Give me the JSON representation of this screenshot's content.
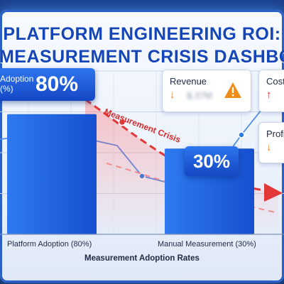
{
  "header": {
    "title_line1": "PLATFORM ENGINEERING ROI:",
    "title_line2": "THE MEASUREMENT CRISIS DASHBOARD"
  },
  "chart_data": {
    "type": "bar",
    "categories": [
      "Platform Adoption (80%)",
      "Manual Measurement (30%)"
    ],
    "values": [
      80,
      30
    ],
    "value_labels": [
      "80%",
      "30%"
    ],
    "xlabel": "Measurement Adoption Rates",
    "ylabel": "",
    "ylim": [
      0,
      100
    ],
    "bar_color": "#1e63e6",
    "adoption_callout": {
      "label": "Adoption (%)",
      "value": "80%"
    },
    "annotation": {
      "text": "Measurement Crisis",
      "color": "#d82b2b"
    }
  },
  "cards": {
    "revenue": {
      "title": "Revenue",
      "value": "$.37M",
      "trend": "down",
      "trend_color": "#e67e22",
      "icon": "warning-icon",
      "icon_color": "#f08c1a"
    },
    "cost": {
      "title": "Cost",
      "trend": "up",
      "trend_color": "#d82b2b"
    },
    "profit": {
      "title": "Profi",
      "trend": "down",
      "trend_color": "#e67e22"
    }
  },
  "colors": {
    "primary": "#1e63e6",
    "danger": "#d82b2b",
    "title": "#1546b8"
  }
}
